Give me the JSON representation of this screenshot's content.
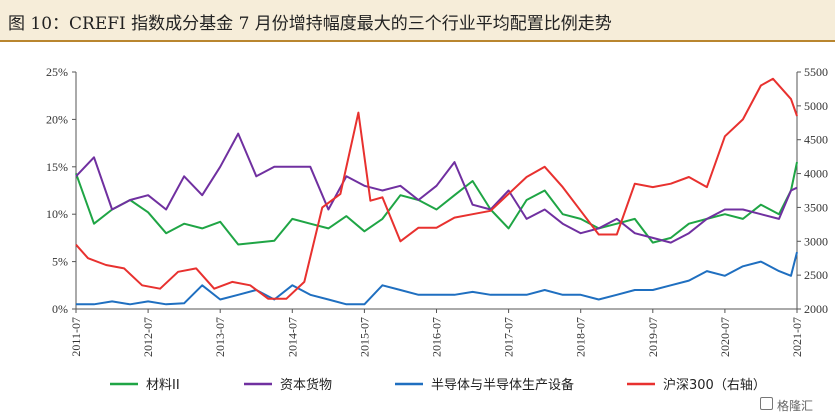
{
  "figure": {
    "title": "图 10：CREFI 指数成分基金 7 月份增持幅度最大的三个行业平均配置比例走势"
  },
  "watermark": {
    "text": "格隆汇",
    "icon": "gelonghui-logo-icon"
  },
  "chart_data": {
    "type": "line",
    "x_ticks": [
      "2011-07",
      "2012-07",
      "2013-07",
      "2014-07",
      "2015-07",
      "2016-07",
      "2017-07",
      "2018-07",
      "2019-07",
      "2020-07",
      "2021-07"
    ],
    "x_range": [
      "2011-07",
      "2021-07"
    ],
    "y_left": {
      "ticks": [
        "0%",
        "5%",
        "10%",
        "15%",
        "20%",
        "25%"
      ],
      "range": [
        0,
        25
      ]
    },
    "y_right": {
      "ticks": [
        "2000",
        "2500",
        "3000",
        "3500",
        "4000",
        "4500",
        "5000",
        "5500"
      ],
      "range": [
        2000,
        5500
      ]
    },
    "grid": false,
    "legend_position": "bottom",
    "series": [
      {
        "name": "材料II",
        "axis": "left",
        "color": "#1fa545",
        "x": [
          "2011-07",
          "2011-10",
          "2012-01",
          "2012-04",
          "2012-07",
          "2012-10",
          "2013-01",
          "2013-04",
          "2013-07",
          "2013-10",
          "2014-01",
          "2014-04",
          "2014-07",
          "2014-10",
          "2015-01",
          "2015-04",
          "2015-07",
          "2015-10",
          "2016-01",
          "2016-04",
          "2016-07",
          "2016-10",
          "2017-01",
          "2017-04",
          "2017-07",
          "2017-10",
          "2018-01",
          "2018-04",
          "2018-07",
          "2018-10",
          "2019-01",
          "2019-04",
          "2019-07",
          "2019-10",
          "2020-01",
          "2020-04",
          "2020-07",
          "2020-10",
          "2021-01",
          "2021-04",
          "2021-06",
          "2021-07"
        ],
        "values": [
          14.3,
          9.0,
          10.5,
          11.5,
          10.2,
          8.0,
          9.0,
          8.5,
          9.2,
          6.8,
          7.0,
          7.2,
          9.5,
          9.0,
          8.5,
          9.8,
          8.2,
          9.5,
          12.0,
          11.5,
          10.5,
          12.0,
          13.5,
          10.5,
          8.5,
          11.5,
          12.5,
          10.0,
          9.5,
          8.5,
          9.0,
          9.5,
          7.0,
          7.5,
          9.0,
          9.5,
          10.0,
          9.5,
          11.0,
          10.0,
          12.5,
          15.5
        ]
      },
      {
        "name": "资本货物",
        "axis": "left",
        "color": "#7030a0",
        "x": [
          "2011-07",
          "2011-10",
          "2012-01",
          "2012-04",
          "2012-07",
          "2012-10",
          "2013-01",
          "2013-04",
          "2013-07",
          "2013-10",
          "2014-01",
          "2014-04",
          "2014-07",
          "2014-10",
          "2015-01",
          "2015-04",
          "2015-07",
          "2015-10",
          "2016-01",
          "2016-04",
          "2016-07",
          "2016-10",
          "2017-01",
          "2017-04",
          "2017-07",
          "2017-10",
          "2018-01",
          "2018-04",
          "2018-07",
          "2018-10",
          "2019-01",
          "2019-04",
          "2019-07",
          "2019-10",
          "2020-01",
          "2020-04",
          "2020-07",
          "2020-10",
          "2021-01",
          "2021-04",
          "2021-06",
          "2021-07"
        ],
        "values": [
          14.0,
          16.0,
          10.5,
          11.5,
          12.0,
          10.5,
          14.0,
          12.0,
          15.0,
          18.5,
          14.0,
          15.0,
          15.0,
          15.0,
          10.5,
          14.0,
          13.0,
          12.5,
          13.0,
          11.5,
          13.0,
          15.5,
          11.0,
          10.5,
          12.5,
          9.5,
          10.5,
          9.0,
          8.0,
          8.5,
          9.5,
          8.0,
          7.5,
          7.0,
          8.0,
          9.5,
          10.5,
          10.5,
          10.0,
          9.5,
          12.5,
          12.8
        ]
      },
      {
        "name": "半导体与半导体生产设备",
        "axis": "left",
        "color": "#1f6fc0",
        "x": [
          "2011-07",
          "2011-10",
          "2012-01",
          "2012-04",
          "2012-07",
          "2012-10",
          "2013-01",
          "2013-04",
          "2013-07",
          "2013-10",
          "2014-01",
          "2014-04",
          "2014-07",
          "2014-10",
          "2015-01",
          "2015-04",
          "2015-07",
          "2015-10",
          "2016-01",
          "2016-04",
          "2016-07",
          "2016-10",
          "2017-01",
          "2017-04",
          "2017-07",
          "2017-10",
          "2018-01",
          "2018-04",
          "2018-07",
          "2018-10",
          "2019-01",
          "2019-04",
          "2019-07",
          "2019-10",
          "2020-01",
          "2020-04",
          "2020-07",
          "2020-10",
          "2021-01",
          "2021-04",
          "2021-06",
          "2021-07"
        ],
        "values": [
          0.5,
          0.5,
          0.8,
          0.5,
          0.8,
          0.5,
          0.6,
          2.5,
          1.0,
          1.5,
          2.0,
          1.0,
          2.5,
          1.5,
          1.0,
          0.5,
          0.5,
          2.5,
          2.0,
          1.5,
          1.5,
          1.5,
          1.8,
          1.5,
          1.5,
          1.5,
          2.0,
          1.5,
          1.5,
          1.0,
          1.5,
          2.0,
          2.0,
          2.5,
          3.0,
          4.0,
          3.5,
          4.5,
          5.0,
          4.0,
          3.5,
          6.0
        ]
      },
      {
        "name": "沪深300（右轴）",
        "axis": "right",
        "color": "#e8312f",
        "x": [
          "2011-07",
          "2011-09",
          "2011-12",
          "2012-03",
          "2012-06",
          "2012-09",
          "2012-12",
          "2013-03",
          "2013-06",
          "2013-09",
          "2013-12",
          "2014-03",
          "2014-06",
          "2014-09",
          "2014-12",
          "2015-03",
          "2015-06",
          "2015-08",
          "2015-10",
          "2016-01",
          "2016-04",
          "2016-07",
          "2016-10",
          "2017-01",
          "2017-04",
          "2017-07",
          "2017-10",
          "2018-01",
          "2018-04",
          "2018-07",
          "2018-10",
          "2019-01",
          "2019-04",
          "2019-07",
          "2019-10",
          "2020-01",
          "2020-04",
          "2020-07",
          "2020-10",
          "2021-01",
          "2021-03",
          "2021-06",
          "2021-07"
        ],
        "values": [
          2950,
          2750,
          2650,
          2600,
          2350,
          2300,
          2550,
          2600,
          2300,
          2400,
          2350,
          2150,
          2150,
          2400,
          3500,
          3700,
          4900,
          3600,
          3650,
          3000,
          3200,
          3200,
          3350,
          3400,
          3450,
          3700,
          3950,
          4100,
          3800,
          3450,
          3100,
          3100,
          3850,
          3800,
          3850,
          3950,
          3800,
          4550,
          4800,
          5300,
          5400,
          5100,
          4850
        ]
      }
    ]
  }
}
